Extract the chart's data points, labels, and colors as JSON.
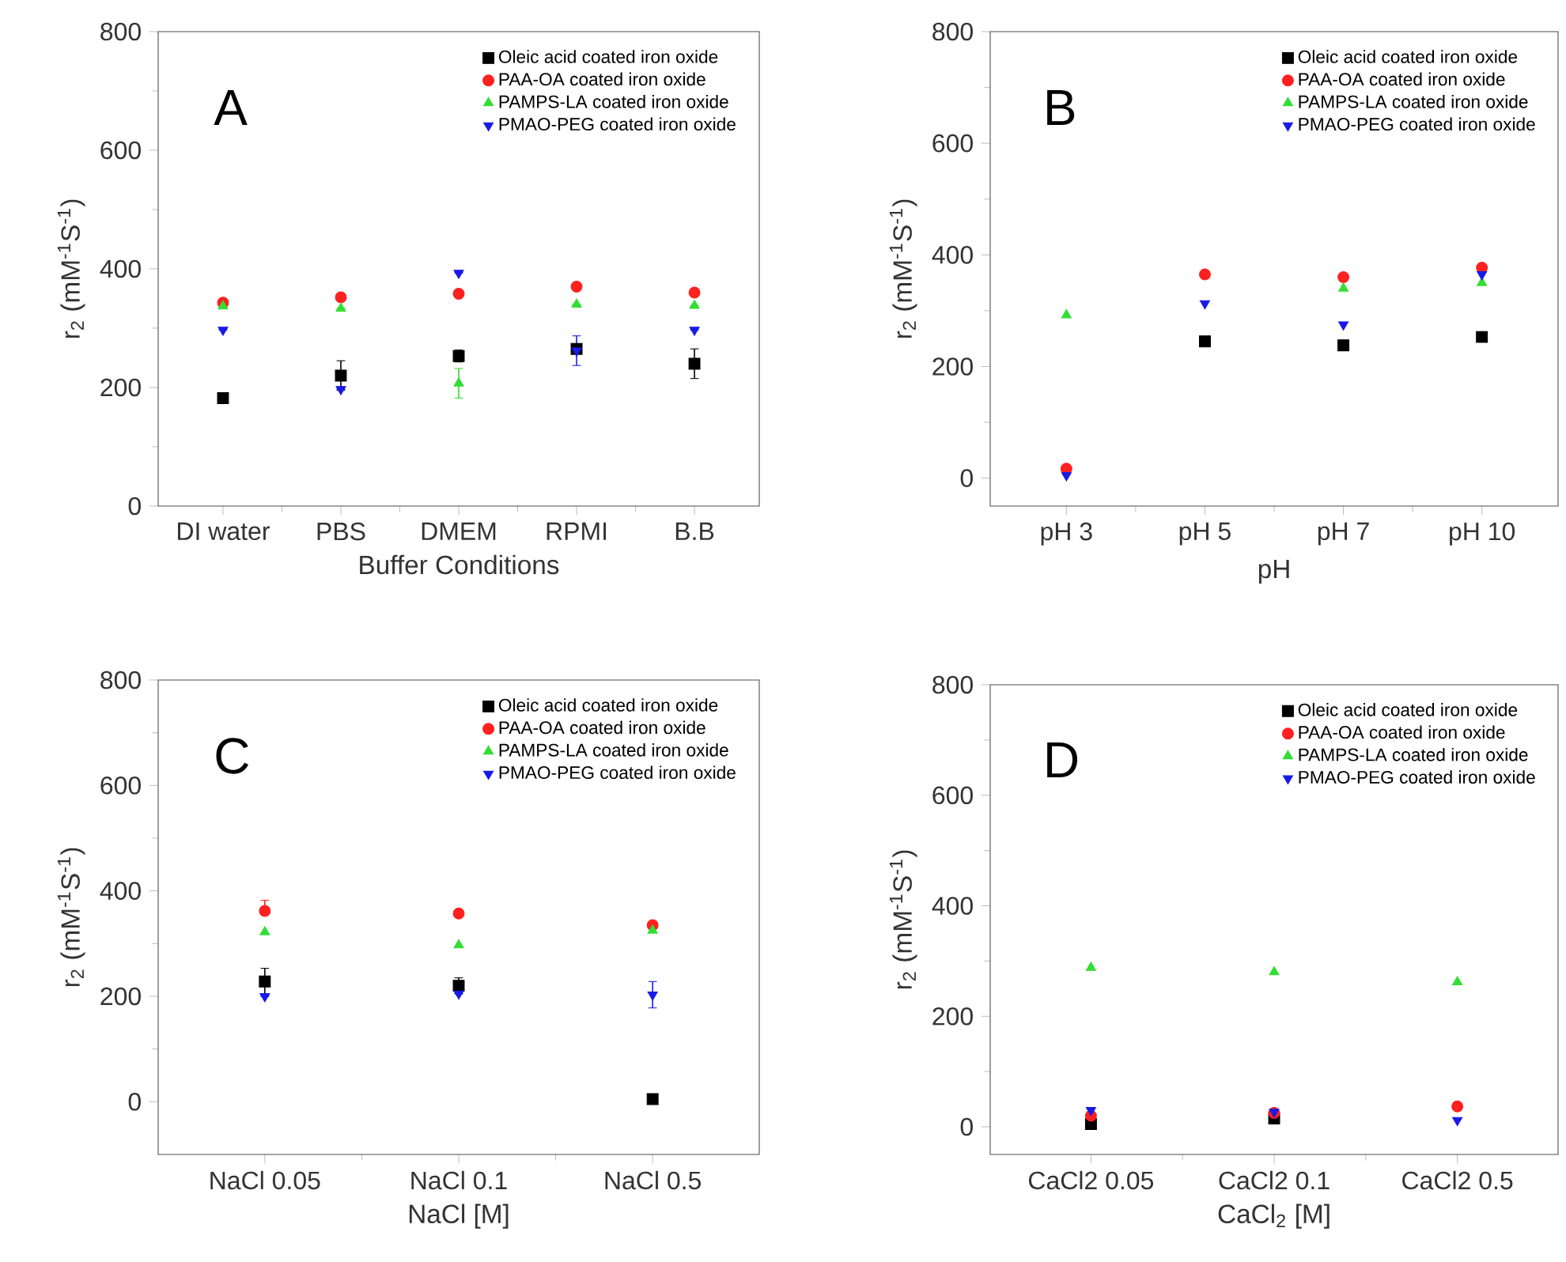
{
  "chart_data": [
    {
      "type": "scatter",
      "xlabel": "Buffer Conditions",
      "ylabel": "r$_{2}$ (mM$^{-1}$S$^{-1}$)",
      "annotations": [
        "A"
      ],
      "categories": [
        "DI water",
        "PBS",
        "DMEM",
        "RPMI",
        "B.B"
      ],
      "ylim": [
        0,
        800
      ],
      "yticks": [
        0,
        200,
        400,
        600,
        800
      ],
      "legend": "top right",
      "series": [
        {
          "name": "Oleic acid coated iron oxide",
          "color": "#000000",
          "marker": "square",
          "values": [
            182,
            220,
            253,
            265,
            240
          ],
          "errors": [
            null,
            25,
            10,
            null,
            25
          ]
        },
        {
          "name": "PAA-OA coated iron oxide",
          "color": "#ff2020",
          "marker": "circle",
          "values": [
            343,
            352,
            358,
            370,
            360
          ]
        },
        {
          "name": "PAMPS-LA coated iron oxide",
          "color": "#33dd33",
          "marker": "triangle",
          "values": [
            337,
            333,
            207,
            340,
            338
          ],
          "errors": [
            null,
            null,
            25,
            null,
            null
          ]
        },
        {
          "name": "PMAO-PEG coated iron oxide",
          "color": "#1a1ae6",
          "marker": "triangle down",
          "values": [
            297,
            197,
            393,
            262,
            297
          ],
          "errors": [
            null,
            null,
            null,
            25,
            null
          ]
        }
      ]
    },
    {
      "type": "scatter",
      "xlabel": "pH",
      "ylabel": "r$_{2}$ (mM$^{-1}$S$^{-1}$)",
      "annotations": [
        "B"
      ],
      "categories": [
        "pH 3",
        "pH 5",
        "pH 7",
        "pH 10"
      ],
      "ylim": [
        -50,
        800
      ],
      "yticks": [
        0,
        200,
        400,
        600,
        800
      ],
      "legend": "top right",
      "series": [
        {
          "name": "Oleic acid coated iron oxide",
          "color": "#000000",
          "marker": "square",
          "values": [
            null,
            245,
            238,
            253
          ]
        },
        {
          "name": "PAA-OA coated iron oxide",
          "color": "#ff2020",
          "marker": "circle",
          "values": [
            17,
            365,
            360,
            377
          ]
        },
        {
          "name": "PAMPS-LA coated iron oxide",
          "color": "#33dd33",
          "marker": "triangle",
          "values": [
            292,
            null,
            340,
            350
          ]
        },
        {
          "name": "PMAO-PEG coated iron oxide",
          "color": "#1a1ae6",
          "marker": "triangle down",
          "values": [
            5,
            313,
            275,
            365
          ]
        }
      ]
    },
    {
      "type": "scatter",
      "xlabel": "NaCl [M]",
      "ylabel": "r$_{2}$ (mM$^{-1}$S$^{-1}$)",
      "annotations": [
        "C"
      ],
      "categories": [
        "NaCl 0.05",
        "NaCl 0.1",
        "NaCl 0.5"
      ],
      "ylim": [
        -100,
        800
      ],
      "yticks": [
        0,
        200,
        400,
        600,
        800
      ],
      "legend": "top right",
      "series": [
        {
          "name": "Oleic acid coated iron oxide",
          "color": "#000000",
          "marker": "square",
          "values": [
            228,
            220,
            5
          ],
          "errors": [
            25,
            15,
            null
          ]
        },
        {
          "name": "PAA-OA coated iron oxide",
          "color": "#ff2020",
          "marker": "circle",
          "values": [
            362,
            357,
            335
          ],
          "errors": [
            [
              362,
              382
            ],
            null,
            null
          ]
        },
        {
          "name": "PAMPS-LA coated iron oxide",
          "color": "#33dd33",
          "marker": "triangle",
          "values": [
            322,
            297,
            325
          ]
        },
        {
          "name": "PMAO-PEG coated iron oxide",
          "color": "#1a1ae6",
          "marker": "triangle down",
          "values": [
            200,
            205,
            203
          ],
          "errors": [
            null,
            null,
            25
          ]
        }
      ]
    },
    {
      "type": "scatter",
      "xlabel": "CaCl$_{2}$ [M]",
      "ylabel": "r$_{2}$ (mM$^{-1}$S$^{-1}$)",
      "annotations": [
        "D"
      ],
      "categories": [
        "CaCl2 0.05",
        "CaCl2 0.1",
        "CaCl2 0.5"
      ],
      "ylim": [
        -50,
        800
      ],
      "yticks": [
        0,
        200,
        400,
        600,
        800
      ],
      "legend": "top right",
      "series": [
        {
          "name": "Oleic acid coated iron oxide",
          "color": "#000000",
          "marker": "square",
          "values": [
            5,
            15,
            null
          ]
        },
        {
          "name": "PAA-OA coated iron oxide",
          "color": "#ff2020",
          "marker": "circle",
          "values": [
            20,
            25,
            37
          ]
        },
        {
          "name": "PAMPS-LA coated iron oxide",
          "color": "#33dd33",
          "marker": "triangle",
          "values": [
            288,
            280,
            262
          ]
        },
        {
          "name": "PMAO-PEG coated iron oxide",
          "color": "#1a1ae6",
          "marker": "triangle down",
          "values": [
            30,
            27,
            12
          ]
        }
      ]
    }
  ]
}
